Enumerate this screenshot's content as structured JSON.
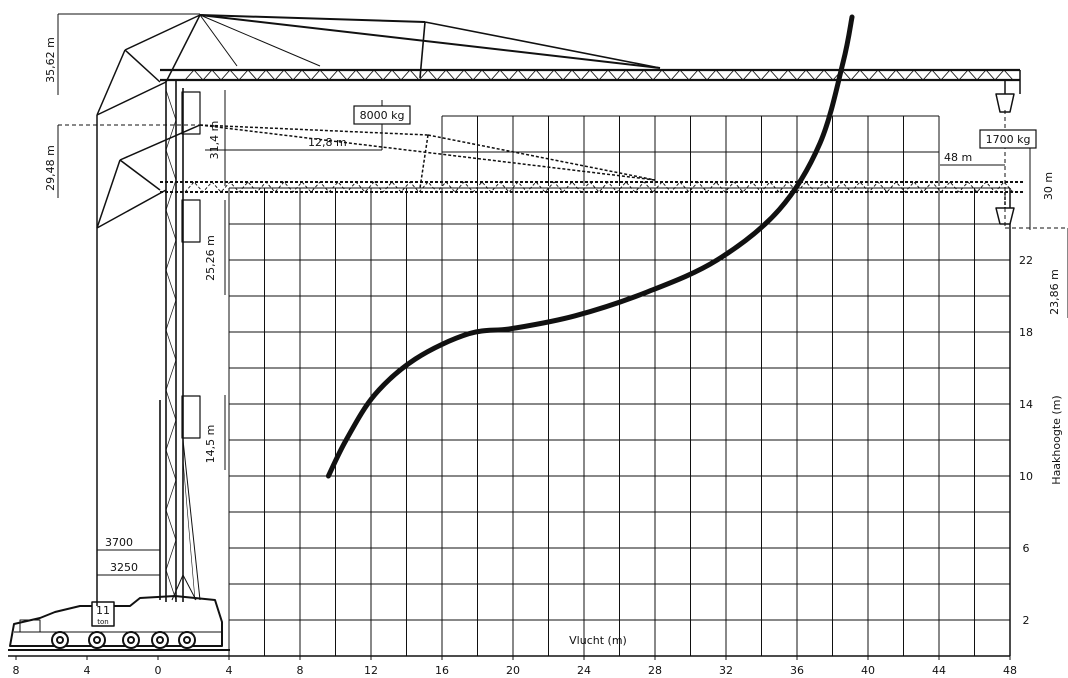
{
  "chart_data": {
    "type": "line",
    "x_label": "Vlucht (m)",
    "y_label": "Haakhoogte (m)",
    "x_ticks": [
      "8",
      "4",
      "0",
      "4",
      "8",
      "12",
      "16",
      "20",
      "24",
      "28",
      "32",
      "36",
      "40",
      "44",
      "48"
    ],
    "x_tick_values": [
      -8,
      -4,
      0,
      4,
      8,
      12,
      16,
      20,
      24,
      28,
      32,
      36,
      40,
      44,
      48
    ],
    "y_ticks": [
      "2",
      "6",
      "10",
      "14",
      "18",
      "22"
    ],
    "y_tick_values": [
      2,
      6,
      10,
      14,
      18,
      22
    ],
    "grid": true,
    "series": [
      {
        "values": [
          {
            "x": 9.6,
            "y": 10.0
          },
          {
            "x": 10.6,
            "y": 12.0
          },
          {
            "x": 12.2,
            "y": 14.5
          },
          {
            "x": 14.5,
            "y": 16.5
          },
          {
            "x": 17.5,
            "y": 17.9
          },
          {
            "x": 20.0,
            "y": 18.2
          },
          {
            "x": 23.5,
            "y": 18.9
          },
          {
            "x": 27.5,
            "y": 20.2
          },
          {
            "x": 31.5,
            "y": 22.0
          },
          {
            "x": 35.0,
            "y": 24.8
          },
          {
            "x": 37.3,
            "y": 28.5
          },
          {
            "x": 38.6,
            "y": 33.0
          },
          {
            "x": 39.1,
            "y": 35.5
          }
        ]
      }
    ]
  },
  "dimensions": {
    "top_height": "35,62 m",
    "mid_height": "29,48 m",
    "max_load": "8000 kg",
    "max_load_radius": "12,8 m",
    "mast_height_a": "31,4 m",
    "tip_load": "1700 kg",
    "jib_length": "48 m",
    "hook_height_30": "30 m",
    "mast_height_b": "25,26 m",
    "right_height": "23,86 m",
    "low_height": "14,5 m",
    "outrigger_a": "3700",
    "outrigger_b": "3250",
    "weight_value": "11",
    "weight_unit": "ton"
  }
}
